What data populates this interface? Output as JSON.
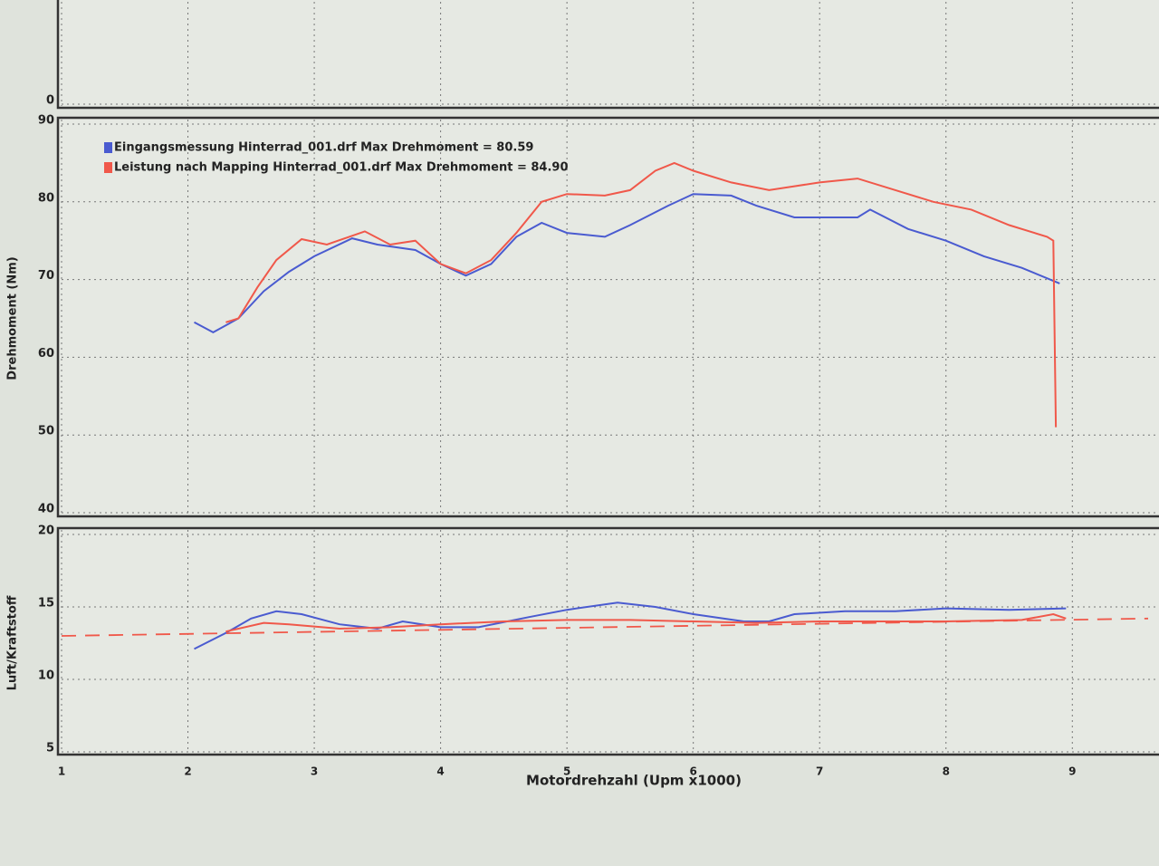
{
  "chart_data": [
    {
      "type": "line",
      "ylim": [
        0,
        100
      ],
      "yticks": [
        0
      ],
      "grid": true
    },
    {
      "type": "line",
      "y_label": "Drehmoment (Nm)",
      "ylim": [
        40,
        90
      ],
      "yticks": [
        40,
        50,
        60,
        70,
        80,
        90
      ],
      "grid": true,
      "legend": "top-left",
      "series": [
        {
          "name": "Eingangsmessung Hinterrad_001.drf Max Drehmoment = 80.59",
          "color": "#4a5bd0",
          "x": [
            2.05,
            2.2,
            2.4,
            2.6,
            2.8,
            3.0,
            3.3,
            3.5,
            3.8,
            4.0,
            4.2,
            4.4,
            4.6,
            4.8,
            5.0,
            5.3,
            5.5,
            5.8,
            6.0,
            6.3,
            6.5,
            6.8,
            7.0,
            7.3,
            7.4,
            7.7,
            8.0,
            8.3,
            8.6,
            8.9
          ],
          "values": [
            64.5,
            63.2,
            65,
            68.5,
            71,
            73,
            75.3,
            74.5,
            73.8,
            72,
            70.5,
            72,
            75.5,
            77.3,
            76,
            75.5,
            77,
            79.5,
            81,
            80.8,
            79.5,
            78,
            78,
            78,
            79,
            76.5,
            75,
            73,
            71.5,
            69.5
          ]
        },
        {
          "name": "Leistung nach Mapping Hinterrad_001.drf Max Drehmoment = 84.90",
          "color": "#f0584a",
          "x": [
            2.3,
            2.4,
            2.55,
            2.7,
            2.9,
            3.1,
            3.4,
            3.6,
            3.8,
            4.0,
            4.2,
            4.4,
            4.6,
            4.8,
            5.0,
            5.3,
            5.5,
            5.7,
            5.85,
            6.0,
            6.3,
            6.6,
            6.8,
            7.0,
            7.3,
            7.6,
            7.9,
            8.2,
            8.5,
            8.8,
            8.85,
            8.87
          ],
          "values": [
            64.5,
            65,
            69,
            72.5,
            75.2,
            74.5,
            76.2,
            74.5,
            75,
            72,
            70.8,
            72.5,
            76,
            80,
            81,
            80.8,
            81.5,
            84,
            85,
            84,
            82.5,
            81.5,
            82,
            82.5,
            83,
            81.5,
            80,
            79,
            77,
            75.5,
            75,
            51
          ]
        }
      ]
    },
    {
      "type": "line",
      "y_label": "Luft/Kraftstoff",
      "x_label": "Motordrehzahl (Upm x1000)",
      "xlim": [
        1,
        9.6
      ],
      "xticks": [
        1,
        2,
        3,
        4,
        5,
        6,
        7,
        8,
        9
      ],
      "ylim": [
        5,
        20
      ],
      "yticks": [
        5,
        10,
        15,
        20
      ],
      "grid": true,
      "series": [
        {
          "color": "#4a5bd0",
          "x": [
            2.05,
            2.3,
            2.5,
            2.7,
            2.9,
            3.2,
            3.5,
            3.7,
            4.0,
            4.3,
            4.7,
            5.0,
            5.4,
            5.7,
            6.0,
            6.4,
            6.6,
            6.8,
            7.2,
            7.6,
            8.0,
            8.5,
            8.95
          ],
          "values": [
            12.1,
            13.2,
            14.2,
            14.7,
            14.5,
            13.8,
            13.5,
            14,
            13.6,
            13.6,
            14.3,
            14.8,
            15.3,
            15,
            14.5,
            14,
            14,
            14.5,
            14.7,
            14.7,
            14.9,
            14.8,
            14.9
          ]
        },
        {
          "color": "#f0584a",
          "x": [
            2.3,
            2.6,
            2.8,
            3.2,
            3.6,
            4.0,
            4.5,
            5.0,
            5.5,
            6.0,
            6.5,
            7.0,
            7.5,
            8.0,
            8.6,
            8.85,
            8.95
          ],
          "values": [
            13.3,
            13.9,
            13.8,
            13.5,
            13.6,
            13.8,
            14.0,
            14.1,
            14.1,
            14.0,
            13.9,
            14.0,
            14.0,
            14.0,
            14.1,
            14.5,
            14.2
          ]
        },
        {
          "color": "#f0584a",
          "dash": true,
          "x": [
            1,
            9.6
          ],
          "values": [
            13.0,
            14.2
          ]
        }
      ]
    }
  ]
}
